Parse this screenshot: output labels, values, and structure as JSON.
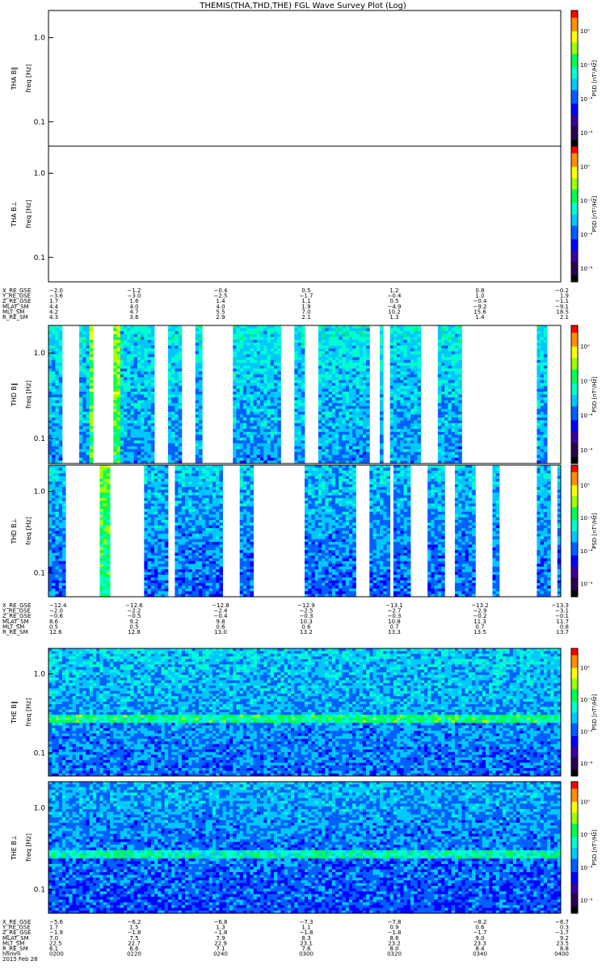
{
  "title": "THEMIS(THA,THD,THE) FGL Wave Survey Plot (Log)",
  "colors": {
    "palette": [
      "#000000",
      "#2a0050",
      "#3a00a0",
      "#0000ff",
      "#0060ff",
      "#00c8ff",
      "#00ffd0",
      "#00ff50",
      "#a0ff00",
      "#ffff00",
      "#ff9000",
      "#ff0000"
    ],
    "no_data": "#ffffff",
    "axis": "#000000"
  },
  "chart_data": [
    {
      "type": "heatmap",
      "probe": "tha",
      "panels": [
        {
          "ylabel": "THA B‖",
          "yunit": "freq [Hz]",
          "ytick_labels": [
            "1.0",
            "0.1"
          ],
          "zlabel": "PSD [nT²/Hz]",
          "ztick_labels": [
            "10⁰",
            "10⁻²",
            "10⁻⁴",
            "10⁻⁶"
          ],
          "has_data": false,
          "coverage_fraction": 0,
          "mean_level": 0
        },
        {
          "ylabel": "THA B⊥",
          "yunit": "freq [Hz]",
          "ytick_labels": [
            "1.0",
            "0.1"
          ],
          "zlabel": "PSD [nT²/Hz]",
          "ztick_labels": [
            "10⁰",
            "10⁻²",
            "10⁻⁴",
            "10⁻⁶"
          ],
          "has_data": false,
          "coverage_fraction": 0,
          "mean_level": 0
        }
      ],
      "ephemeris": [
        {
          "label": "X_RE_GSE",
          "values": [
            "−2.0",
            "−1.2",
            "−0.4",
            "0.5",
            "1.2",
            "0.8",
            "−0.2"
          ]
        },
        {
          "label": "Y_RE_GSE",
          "values": [
            "−3.6",
            "−3.0",
            "−2.5",
            "−1.7",
            "−0.4",
            "1.0",
            "1.9"
          ]
        },
        {
          "label": "Z_RE_GSE",
          "values": [
            "1.7",
            "1.6",
            "1.4",
            "1.1",
            "0.5",
            "−0.4",
            "−1.1"
          ]
        },
        {
          "label": "MLAT_SM",
          "values": [
            "4.4",
            "4.0",
            "4.0",
            "1.9",
            "−4.9",
            "−9.2",
            "−9.1"
          ]
        },
        {
          "label": "MLT_SM",
          "values": [
            "4.2",
            "4.7",
            "5.5",
            "7.0",
            "10.2",
            "15.6",
            "18.5"
          ]
        },
        {
          "label": "R_RE_SM",
          "values": [
            "4.3",
            "3.6",
            "2.9",
            "2.1",
            "1.3",
            "1.4",
            "2.1"
          ]
        }
      ]
    },
    {
      "type": "heatmap",
      "probe": "thd",
      "panels": [
        {
          "ylabel": "THD B‖",
          "yunit": "freq [Hz]",
          "ytick_labels": [
            "1.0",
            "0.1"
          ],
          "zlabel": "PSD [nT²/Hz]",
          "ztick_labels": [
            "10⁰",
            "10⁻²",
            "10⁻⁴",
            "10⁻⁶"
          ],
          "has_data": true,
          "coverage_fraction": 0.5,
          "mean_level": 4.4
        },
        {
          "ylabel": "THD B⊥",
          "yunit": "freq [Hz]",
          "ytick_labels": [
            "1.0",
            "0.1"
          ],
          "zlabel": "PSD [nT²/Hz]",
          "ztick_labels": [
            "10⁰",
            "10⁻²",
            "10⁻⁴",
            "10⁻⁶"
          ],
          "has_data": true,
          "coverage_fraction": 0.5,
          "mean_level": 3.9
        }
      ],
      "ephemeris": [
        {
          "label": "X_RE_GSE",
          "values": [
            "−12.4",
            "−12.6",
            "−12.8",
            "−12.9",
            "−13.1",
            "−13.2",
            "−13.3"
          ]
        },
        {
          "label": "Y_RE_GSE",
          "values": [
            "−2.0",
            "−2.2",
            "−2.4",
            "−2.5",
            "−2.7",
            "−2.9",
            "−3.1"
          ]
        },
        {
          "label": "Z_RE_GSE",
          "values": [
            "−0.6",
            "−0.5",
            "−0.4",
            "−0.3",
            "−0.3",
            "−0.2",
            "−0.1"
          ]
        },
        {
          "label": "MLAT_SM",
          "values": [
            "8.6",
            "9.2",
            "9.8",
            "10.3",
            "10.8",
            "11.3",
            "11.7"
          ]
        },
        {
          "label": "MLT_SM",
          "values": [
            "0.5",
            "0.5",
            "0.6",
            "0.6",
            "0.7",
            "0.7",
            "0.8"
          ]
        },
        {
          "label": "R_RE_SM",
          "values": [
            "12.6",
            "12.8",
            "13.0",
            "13.2",
            "13.3",
            "13.5",
            "13.7"
          ]
        }
      ]
    },
    {
      "type": "heatmap",
      "probe": "the",
      "panels": [
        {
          "ylabel": "THE B‖",
          "yunit": "freq [Hz]",
          "ytick_labels": [
            "1.0",
            "0.1"
          ],
          "zlabel": "PSD [nT²/Hz]",
          "ztick_labels": [
            "10⁰",
            "10⁻²",
            "10⁻⁴",
            "10⁻⁶"
          ],
          "has_data": true,
          "coverage_fraction": 1,
          "mean_level": 4.0
        },
        {
          "ylabel": "THE B⊥",
          "yunit": "freq [Hz]",
          "ytick_labels": [
            "1.0",
            "0.1"
          ],
          "zlabel": "PSD [nT²/Hz]",
          "ztick_labels": [
            "10⁰",
            "10⁻²",
            "10⁻⁴",
            "10⁻⁶"
          ],
          "has_data": true,
          "coverage_fraction": 1,
          "mean_level": 3.6
        }
      ],
      "ephemeris": [
        {
          "label": "X_RE_GSE",
          "values": [
            "−5.6",
            "−6.2",
            "−6.8",
            "−7.3",
            "−7.8",
            "−8.2",
            "−8.7"
          ]
        },
        {
          "label": "Y_RE_GSE",
          "values": [
            "1.7",
            "1.5",
            "1.3",
            "1.1",
            "0.9",
            "0.6",
            "0.3"
          ]
        },
        {
          "label": "Z_RE_GSE",
          "values": [
            "−1.9",
            "−1.8",
            "−1.8",
            "−1.8",
            "−1.8",
            "−1.7",
            "−1.7"
          ]
        },
        {
          "label": "MLAT_SM",
          "values": [
            "7.0",
            "7.5",
            "7.9",
            "8.3",
            "8.6",
            "9.0",
            "9.2"
          ]
        },
        {
          "label": "MLT_SM",
          "values": [
            "22.5",
            "22.7",
            "22.9",
            "23.1",
            "23.2",
            "23.3",
            "23.5"
          ]
        },
        {
          "label": "R_RE_SM",
          "values": [
            "6.1",
            "6.6",
            "7.1",
            "7.6",
            "8.0",
            "8.4",
            "8.8"
          ]
        },
        {
          "label": "hhmm",
          "values": [
            "0200",
            "0220",
            "0240",
            "0300",
            "0320",
            "0340",
            "0400"
          ]
        }
      ],
      "date_label": "2015 Feb 28"
    }
  ]
}
